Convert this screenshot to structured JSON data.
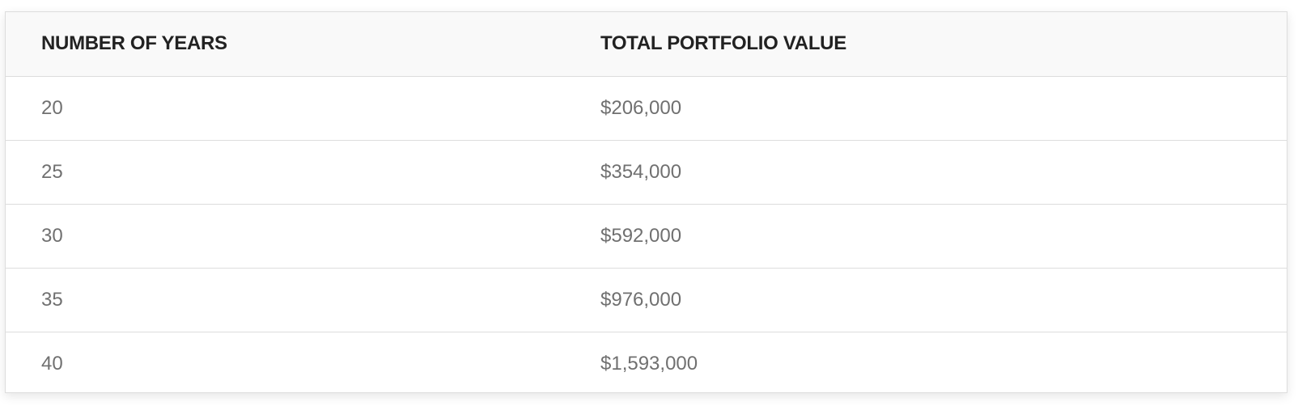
{
  "table": {
    "headers": [
      "NUMBER OF YEARS",
      "TOTAL PORTFOLIO VALUE"
    ],
    "rows": [
      [
        "20",
        "$206,000"
      ],
      [
        "25",
        "$354,000"
      ],
      [
        "30",
        "$592,000"
      ],
      [
        "35",
        "$976,000"
      ],
      [
        "40",
        "$1,593,000"
      ]
    ]
  },
  "colors": {
    "header_bg": "#f9f9f9",
    "header_text": "#222222",
    "cell_text": "#707070",
    "border": "#dddddd"
  }
}
